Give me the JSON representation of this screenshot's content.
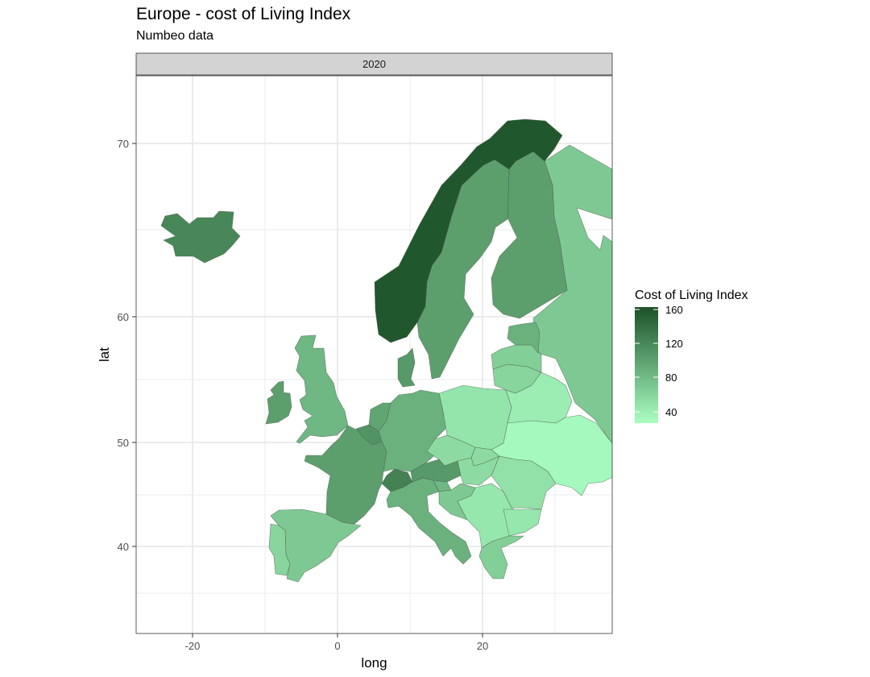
{
  "title": "Europe - cost of Living Index",
  "subtitle": "Numbeo data",
  "facet": "2020",
  "axes": {
    "x_title": "long",
    "y_title": "lat",
    "x_ticks": [
      "-20",
      "0",
      "20"
    ],
    "y_ticks": [
      "40",
      "50",
      "60",
      "70"
    ]
  },
  "legend": {
    "title": "Cost of Living Index",
    "labels": [
      "160",
      "120",
      "80",
      "40"
    ],
    "color_low": "#aaffc3",
    "color_high": "#1c5128"
  },
  "chart_data": {
    "type": "map",
    "title": "Europe - cost of Living Index",
    "subtitle": "Numbeo data",
    "facet": "2020",
    "xlabel": "long",
    "ylabel": "lat",
    "xlim": [
      -28,
      38
    ],
    "ylim": [
      34,
      75
    ],
    "grid": true,
    "legend_position": "right",
    "regions": [
      {
        "id": "norway",
        "value": 160
      },
      {
        "id": "iceland",
        "value": 120
      },
      {
        "id": "switzerland",
        "value": 125
      },
      {
        "id": "belgium-lux",
        "value": 110
      },
      {
        "id": "austria",
        "value": 105
      },
      {
        "id": "sweden",
        "value": 100
      },
      {
        "id": "finland",
        "value": 100
      },
      {
        "id": "france",
        "value": 100
      },
      {
        "id": "denmark",
        "value": 105
      },
      {
        "id": "ireland",
        "value": 100
      },
      {
        "id": "netherlands",
        "value": 95
      },
      {
        "id": "germany",
        "value": 85
      },
      {
        "id": "uk",
        "value": 80
      },
      {
        "id": "italy",
        "value": 85
      },
      {
        "id": "estonia",
        "value": 85
      },
      {
        "id": "slovenia",
        "value": 80
      },
      {
        "id": "russia",
        "value": 65
      },
      {
        "id": "spain",
        "value": 65
      },
      {
        "id": "croatia",
        "value": 65
      },
      {
        "id": "latvia",
        "value": 60
      },
      {
        "id": "lithuania",
        "value": 55
      },
      {
        "id": "greece",
        "value": 60
      },
      {
        "id": "portugal",
        "value": 55
      },
      {
        "id": "czechia",
        "value": 50
      },
      {
        "id": "slovakia",
        "value": 50
      },
      {
        "id": "hungary",
        "value": 50
      },
      {
        "id": "romania",
        "value": 45
      },
      {
        "id": "poland",
        "value": 42
      },
      {
        "id": "balkans",
        "value": 40
      },
      {
        "id": "belarus",
        "value": 35
      },
      {
        "id": "ukraine",
        "value": 25
      }
    ]
  }
}
